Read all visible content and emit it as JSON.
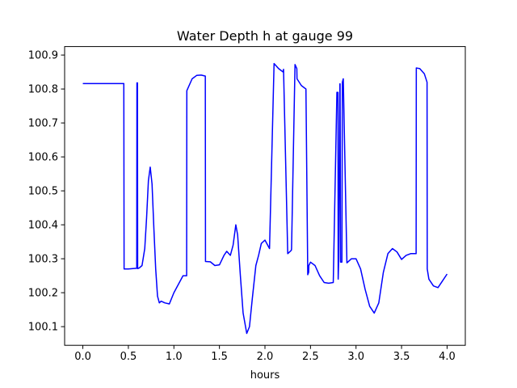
{
  "chart_data": {
    "type": "line",
    "title": "Water Depth h at gauge 99",
    "xlabel": "hours",
    "ylabel": "",
    "xlim": [
      -0.2,
      4.2
    ],
    "ylim": [
      100.045,
      100.925
    ],
    "xticks": [
      0.0,
      0.5,
      1.0,
      1.5,
      2.0,
      2.5,
      3.0,
      3.5,
      4.0
    ],
    "xtick_labels": [
      "0.0",
      "0.5",
      "1.0",
      "1.5",
      "2.0",
      "2.5",
      "3.0",
      "3.5",
      "4.0"
    ],
    "yticks": [
      100.1,
      100.2,
      100.3,
      100.4,
      100.5,
      100.6,
      100.7,
      100.8,
      100.9
    ],
    "ytick_labels": [
      "100.1",
      "100.2",
      "100.3",
      "100.4",
      "100.5",
      "100.6",
      "100.7",
      "100.8",
      "100.9"
    ],
    "grid": false,
    "series": [
      {
        "color": "#0000ff",
        "x": [
          0.0,
          0.45,
          0.453,
          0.5,
          0.55,
          0.592,
          0.594,
          0.6,
          0.602,
          0.62,
          0.65,
          0.68,
          0.7,
          0.72,
          0.74,
          0.76,
          0.78,
          0.8,
          0.82,
          0.84,
          0.86,
          0.9,
          0.95,
          1.0,
          1.05,
          1.1,
          1.14,
          1.142,
          1.2,
          1.25,
          1.3,
          1.345,
          1.347,
          1.4,
          1.45,
          1.5,
          1.55,
          1.58,
          1.62,
          1.65,
          1.68,
          1.7,
          1.73,
          1.76,
          1.8,
          1.83,
          1.86,
          1.9,
          1.93,
          1.96,
          2.0,
          2.05,
          2.1,
          2.15,
          2.2,
          2.204,
          2.25,
          2.29,
          2.292,
          2.33,
          2.35,
          2.352,
          2.4,
          2.45,
          2.47,
          2.48,
          2.482,
          2.5,
          2.55,
          2.6,
          2.65,
          2.7,
          2.75,
          2.79,
          2.802,
          2.804,
          2.81,
          2.823,
          2.825,
          2.83,
          2.845,
          2.85,
          2.86,
          2.9,
          2.95,
          3.0,
          3.05,
          3.1,
          3.15,
          3.2,
          3.25,
          3.3,
          3.35,
          3.4,
          3.45,
          3.5,
          3.55,
          3.6,
          3.66,
          3.662,
          3.7,
          3.75,
          3.78,
          3.782,
          3.8,
          3.85,
          3.9,
          3.95,
          4.0
        ],
        "y": [
          100.816,
          100.816,
          100.27,
          100.27,
          100.271,
          100.272,
          100.818,
          100.818,
          100.271,
          100.273,
          100.28,
          100.33,
          100.42,
          100.53,
          100.57,
          100.52,
          100.39,
          100.27,
          100.19,
          100.17,
          100.175,
          100.17,
          100.167,
          100.2,
          100.225,
          100.25,
          100.25,
          100.795,
          100.83,
          100.84,
          100.841,
          100.838,
          100.292,
          100.291,
          100.28,
          100.282,
          100.31,
          100.322,
          100.31,
          100.34,
          100.4,
          100.37,
          100.25,
          100.14,
          100.08,
          100.1,
          100.18,
          100.28,
          100.31,
          100.345,
          100.355,
          100.33,
          100.875,
          100.86,
          100.85,
          100.858,
          100.315,
          100.325,
          100.33,
          100.872,
          100.86,
          100.83,
          100.81,
          100.8,
          100.253,
          100.26,
          100.28,
          100.29,
          100.28,
          100.25,
          100.23,
          100.228,
          100.23,
          100.79,
          100.79,
          100.24,
          100.3,
          100.815,
          100.815,
          100.29,
          100.29,
          100.82,
          100.83,
          100.288,
          100.3,
          100.3,
          100.27,
          100.21,
          100.16,
          100.14,
          100.17,
          100.26,
          100.315,
          100.33,
          100.32,
          100.298,
          100.31,
          100.315,
          100.315,
          100.862,
          100.86,
          100.845,
          100.82,
          100.27,
          100.24,
          100.22,
          100.215,
          100.235,
          100.255
        ]
      }
    ]
  }
}
